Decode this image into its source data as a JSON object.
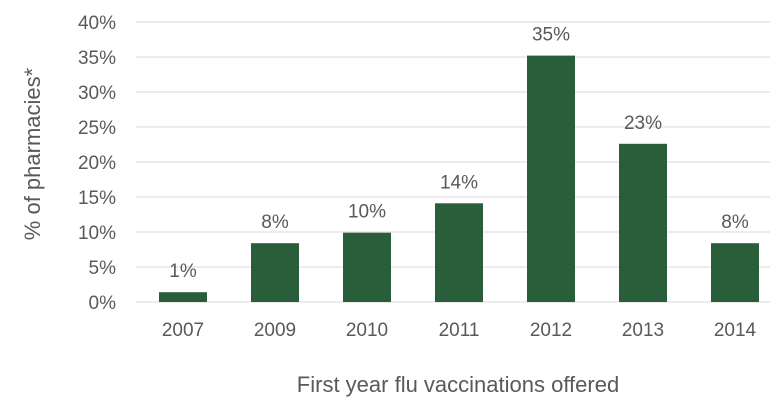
{
  "chart_data": {
    "type": "bar",
    "categories": [
      "2007",
      "2009",
      "2010",
      "2011",
      "2012",
      "2013",
      "2014"
    ],
    "values": [
      1.4,
      8.4,
      9.9,
      14.1,
      35.2,
      22.6,
      8.4
    ],
    "data_labels": [
      "1%",
      "8%",
      "10%",
      "14%",
      "35%",
      "23%",
      "8%"
    ],
    "title": "",
    "xlabel": "First year flu vaccinations offered",
    "ylabel": "% of pharmacies*",
    "ylim": [
      0,
      40
    ],
    "yticks": [
      0,
      5,
      10,
      15,
      20,
      25,
      30,
      35,
      40
    ],
    "ytick_labels": [
      "0%",
      "5%",
      "10%",
      "15%",
      "20%",
      "25%",
      "30%",
      "35%",
      "40%"
    ],
    "grid": true,
    "legend": "none",
    "bar_color": "#2a5e3a"
  }
}
